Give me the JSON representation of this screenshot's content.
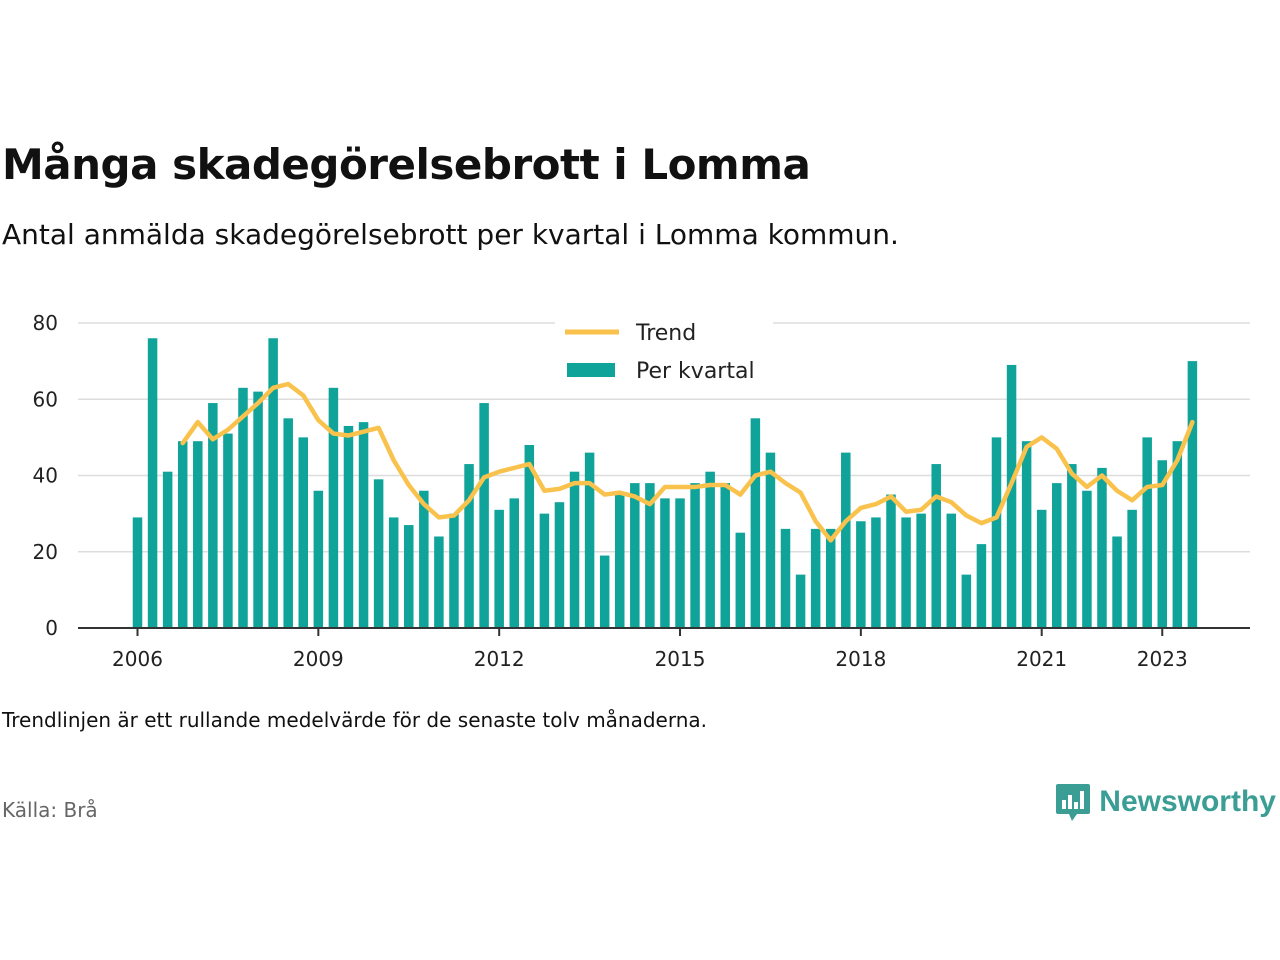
{
  "title": "Många skadegörelsebrott i Lomma",
  "subtitle": "Antal anmälda skadegörelsebrott per kvartal i Lomma kommun.",
  "note": "Trendlinjen är ett rullande medelvärde för de senaste tolv månaderna.",
  "source": "Källa: Brå",
  "brand": "Newsworthy",
  "colors": {
    "bar": "#0fa39a",
    "trend": "#f9c24c",
    "brand": "#3a9e94",
    "grid": "#dddddd"
  },
  "chart_data": {
    "type": "bar",
    "title": "Många skadegörelsebrott i Lomma",
    "start": {
      "year": 2006,
      "quarter": 1
    },
    "ylim": [
      0,
      80
    ],
    "yticks": [
      0,
      20,
      40,
      60,
      80
    ],
    "xticks": [
      "2006",
      "2009",
      "2012",
      "2015",
      "2018",
      "2021",
      "2023"
    ],
    "legend": {
      "position": "top-center",
      "entries": [
        "Trend",
        "Per kvartal"
      ]
    },
    "grid": true,
    "series": [
      {
        "name": "Per kvartal",
        "type": "bar",
        "values": [
          29,
          76,
          41,
          49,
          49,
          59,
          51,
          63,
          62,
          76,
          55,
          50,
          36,
          63,
          53,
          54,
          39,
          29,
          27,
          36,
          24,
          30,
          43,
          59,
          31,
          34,
          48,
          30,
          33,
          41,
          46,
          19,
          35,
          38,
          38,
          34,
          34,
          38,
          41,
          38,
          25,
          55,
          46,
          26,
          14,
          26,
          26,
          46,
          28,
          29,
          35,
          29,
          30,
          43,
          30,
          14,
          22,
          50,
          69,
          49,
          31,
          38,
          43,
          36,
          42,
          24,
          31,
          50,
          44,
          49,
          70
        ]
      },
      {
        "name": "Trend",
        "type": "line",
        "start_index": 3,
        "values": [
          48.5,
          54,
          49.5,
          52,
          55.5,
          59,
          63,
          64,
          61,
          54.5,
          51,
          50.5,
          51.5,
          52.5,
          44,
          37.5,
          32.5,
          29,
          29.5,
          33.5,
          39.5,
          41,
          42,
          43,
          36,
          36.5,
          38,
          38,
          35,
          35.5,
          34.5,
          32.5,
          37,
          37,
          37,
          37.5,
          37.5,
          35,
          40,
          41,
          38,
          35.5,
          28,
          23,
          28,
          31.5,
          32.5,
          34.5,
          30.5,
          31,
          34.5,
          33,
          29.5,
          27.5,
          29,
          38,
          47.5,
          50,
          47,
          40.5,
          37,
          40,
          36,
          33.5,
          37,
          37.5,
          44,
          54
        ]
      }
    ]
  }
}
